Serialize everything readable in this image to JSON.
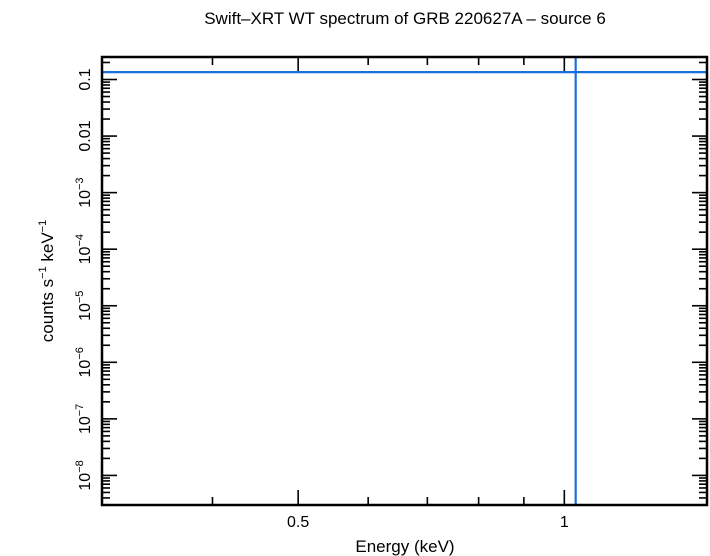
{
  "chart_data": {
    "type": "line",
    "title": "Swift–XRT WT spectrum of GRB 220627A – source 6",
    "xlabel": "Energy (keV)",
    "ylabel_base": "counts s",
    "ylabel_sup1": "−1",
    "ylabel_mid": " keV",
    "ylabel_sup2": "−1",
    "x_scale": "log",
    "y_scale": "log",
    "xlim": [
      0.3,
      1.45
    ],
    "ylim": [
      3e-09,
      0.25
    ],
    "x_ticks": [
      {
        "value": 0.5,
        "label": "0.5"
      },
      {
        "value": 1,
        "label": "1"
      }
    ],
    "y_ticks": [
      {
        "value": 0.1,
        "label": "0.1",
        "base": "",
        "exp": ""
      },
      {
        "value": 0.01,
        "label": "0.01",
        "base": "",
        "exp": ""
      },
      {
        "value": 0.001,
        "label": "",
        "base": "10",
        "exp": "−3"
      },
      {
        "value": 0.0001,
        "label": "",
        "base": "10",
        "exp": "−4"
      },
      {
        "value": 1e-05,
        "label": "",
        "base": "10",
        "exp": "−5"
      },
      {
        "value": 1e-06,
        "label": "",
        "base": "10",
        "exp": "−6"
      },
      {
        "value": 1e-07,
        "label": "",
        "base": "10",
        "exp": "−7"
      },
      {
        "value": 1e-08,
        "label": "",
        "base": "10",
        "exp": "−8"
      }
    ],
    "series_color": "#1a6fdf",
    "hline_y": 0.135,
    "vline_x": 1.03
  }
}
